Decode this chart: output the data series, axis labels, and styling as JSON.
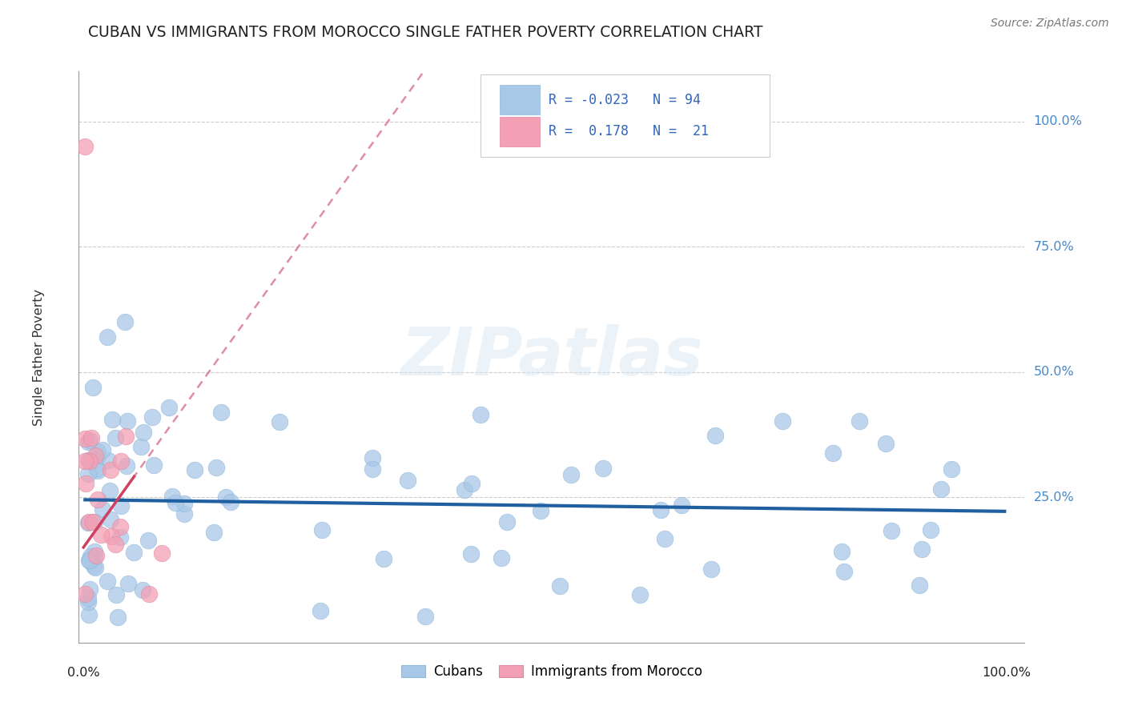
{
  "title": "CUBAN VS IMMIGRANTS FROM MOROCCO SINGLE FATHER POVERTY CORRELATION CHART",
  "source": "Source: ZipAtlas.com",
  "ylabel": "Single Father Poverty",
  "legend_cubans": "Cubans",
  "legend_morocco": "Immigrants from Morocco",
  "cuban_color": "#a8c8e8",
  "morocco_color": "#f4a0b4",
  "cuban_line_color": "#2060a0",
  "morocco_line_color": "#d04060",
  "watermark": "ZIPatlas",
  "title_color": "#222222",
  "right_label_color": "#4488cc",
  "legend_text_color": "#3366bb",
  "cuban_r": -0.023,
  "morocco_r": 0.178,
  "cuban_n": 94,
  "morocco_n": 21
}
